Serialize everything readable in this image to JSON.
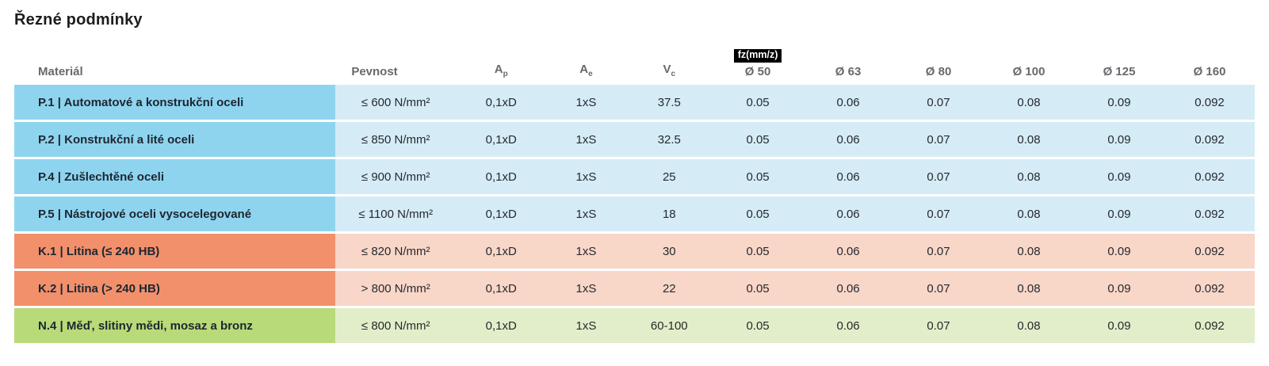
{
  "page": {
    "title": "Řezné podmínky"
  },
  "table": {
    "headers": {
      "material": "Materiál",
      "pevnost": "Pevnost",
      "ap": {
        "base": "A",
        "sub": "p"
      },
      "ae": {
        "base": "A",
        "sub": "e"
      },
      "vc": {
        "base": "V",
        "sub": "c"
      },
      "fz_badge": "fz(mm/z)",
      "diameters": [
        "Ø 50",
        "Ø 63",
        "Ø 80",
        "Ø 100",
        "Ø 125",
        "Ø 160"
      ]
    },
    "rows": [
      {
        "group": "P",
        "material": "P.1 | Automatové a konstrukční oceli",
        "pevnost": "≤ 600 N/mm²",
        "ap": "0,1xD",
        "ae": "1xS",
        "vc": "37.5",
        "fz": [
          "0.05",
          "0.06",
          "0.07",
          "0.08",
          "0.09",
          "0.092"
        ]
      },
      {
        "group": "P",
        "material": "P.2 | Konstrukční a lité oceli",
        "pevnost": "≤ 850 N/mm²",
        "ap": "0,1xD",
        "ae": "1xS",
        "vc": "32.5",
        "fz": [
          "0.05",
          "0.06",
          "0.07",
          "0.08",
          "0.09",
          "0.092"
        ]
      },
      {
        "group": "P",
        "material": "P.4 | Zušlechtěné oceli",
        "pevnost": "≤ 900 N/mm²",
        "ap": "0,1xD",
        "ae": "1xS",
        "vc": "25",
        "fz": [
          "0.05",
          "0.06",
          "0.07",
          "0.08",
          "0.09",
          "0.092"
        ]
      },
      {
        "group": "P",
        "material": "P.5 | Nástrojové oceli vysocelegované",
        "pevnost": "≤ 1100 N/mm²",
        "ap": "0,1xD",
        "ae": "1xS",
        "vc": "18",
        "fz": [
          "0.05",
          "0.06",
          "0.07",
          "0.08",
          "0.09",
          "0.092"
        ]
      },
      {
        "group": "K",
        "material": "K.1 | Litina (≤ 240 HB)",
        "pevnost": "≤ 820 N/mm²",
        "ap": "0,1xD",
        "ae": "1xS",
        "vc": "30",
        "fz": [
          "0.05",
          "0.06",
          "0.07",
          "0.08",
          "0.09",
          "0.092"
        ]
      },
      {
        "group": "K",
        "material": "K.2 | Litina (> 240 HB)",
        "pevnost": "> 800 N/mm²",
        "ap": "0,1xD",
        "ae": "1xS",
        "vc": "22",
        "fz": [
          "0.05",
          "0.06",
          "0.07",
          "0.08",
          "0.09",
          "0.092"
        ]
      },
      {
        "group": "N",
        "material": "N.4 | Měď, slitiny mědi, mosaz a bronz",
        "pevnost": "≤ 800 N/mm²",
        "ap": "0,1xD",
        "ae": "1xS",
        "vc": "60-100",
        "fz": [
          "0.05",
          "0.06",
          "0.07",
          "0.08",
          "0.09",
          "0.092"
        ]
      }
    ]
  },
  "colors": {
    "p_label_bg": "#8fd4ef",
    "p_row_bg": "#d5ecf7",
    "k_label_bg": "#f2906c",
    "k_row_bg": "#f8d6c8",
    "n_label_bg": "#b9da78",
    "n_row_bg": "#e2eec9",
    "badge_bg": "#000000",
    "badge_text": "#ffffff",
    "header_text": "#67696d",
    "title_text": "#1d1d1f",
    "cell_text": "#26292e"
  }
}
